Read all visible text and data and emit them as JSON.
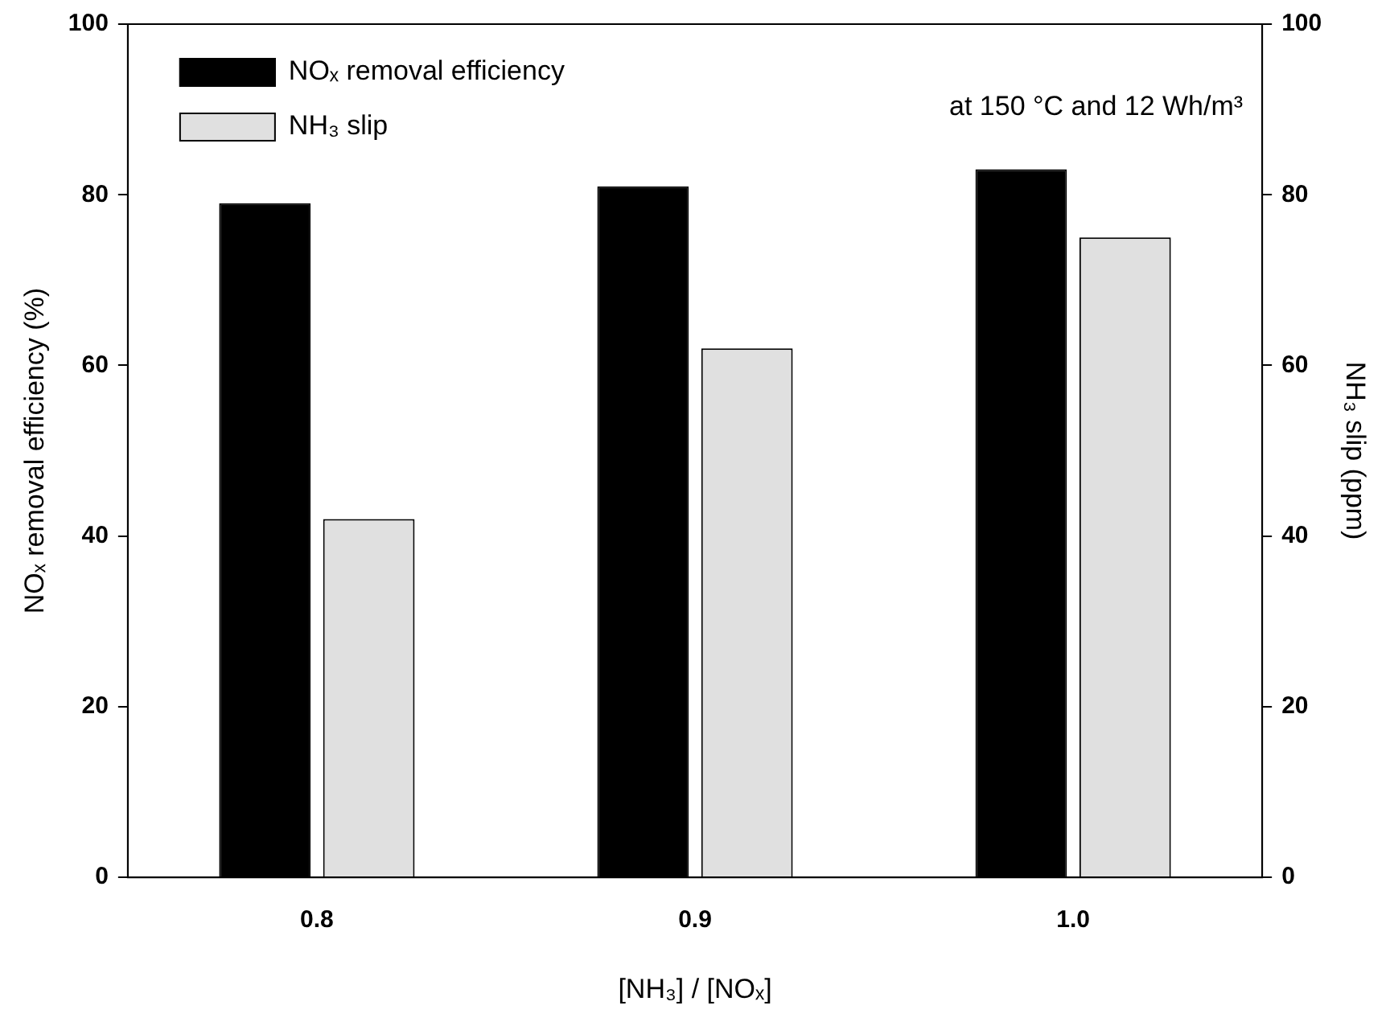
{
  "chart_data": {
    "type": "bar",
    "xlabel": "[NH₃] / [NOₓ]",
    "ylabel": "NOₓ removal efficiency (%)",
    "y2label": "NH₃ slip (ppm)",
    "categories": [
      "0.8",
      "0.9",
      "1.0"
    ],
    "series": [
      {
        "name": "NOₓ removal efficiency",
        "color": "#000000",
        "values": [
          79,
          81,
          83
        ]
      },
      {
        "name": "NH₃ slip",
        "color": "#e0e0e0",
        "axis": "y2",
        "values": [
          42,
          62,
          75
        ]
      }
    ],
    "ylim": [
      0,
      100
    ],
    "yticks": [
      0,
      20,
      40,
      60,
      80,
      100
    ],
    "y2lim": [
      0,
      100
    ],
    "y2ticks": [
      0,
      20,
      40,
      60,
      80,
      100
    ],
    "annotations": [
      "at 150 °C and 12 Wh/m³"
    ],
    "grid": false,
    "legend": "top left"
  }
}
